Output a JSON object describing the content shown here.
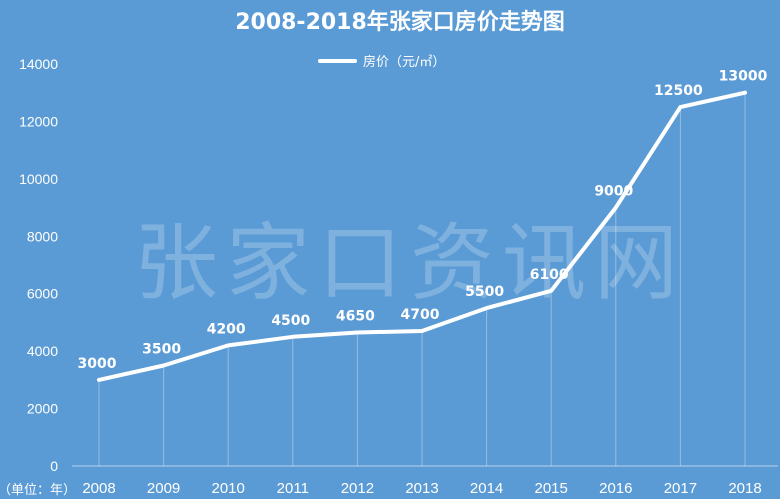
{
  "watermark": "张家口资讯网",
  "chart_data": {
    "type": "line",
    "title": "2008-2018年张家口房价走势图",
    "x_unit_label": "（单位：年）",
    "categories": [
      "2008",
      "2009",
      "2010",
      "2011",
      "2012",
      "2013",
      "2014",
      "2015",
      "2016",
      "2017",
      "2018"
    ],
    "series": [
      {
        "name": "房价（元/㎡）",
        "values": [
          3000,
          3500,
          4200,
          4500,
          4650,
          4700,
          5500,
          6100,
          9000,
          12500,
          13000
        ]
      }
    ],
    "data_labels": [
      "3000",
      "3500",
      "4200",
      "4500",
      "4650",
      "4700",
      "5500",
      "6100",
      "9000",
      "12500",
      "13000"
    ],
    "ylim": [
      0,
      14000
    ],
    "yticks": [
      "0",
      "2000",
      "4000",
      "6000",
      "8000",
      "10000",
      "12000",
      "14000"
    ],
    "grid": false,
    "drop_lines": true,
    "legend_position": "top",
    "colors": {
      "background": "#5b9bd5",
      "line": "#ffffff",
      "text": "#ffffff"
    }
  }
}
